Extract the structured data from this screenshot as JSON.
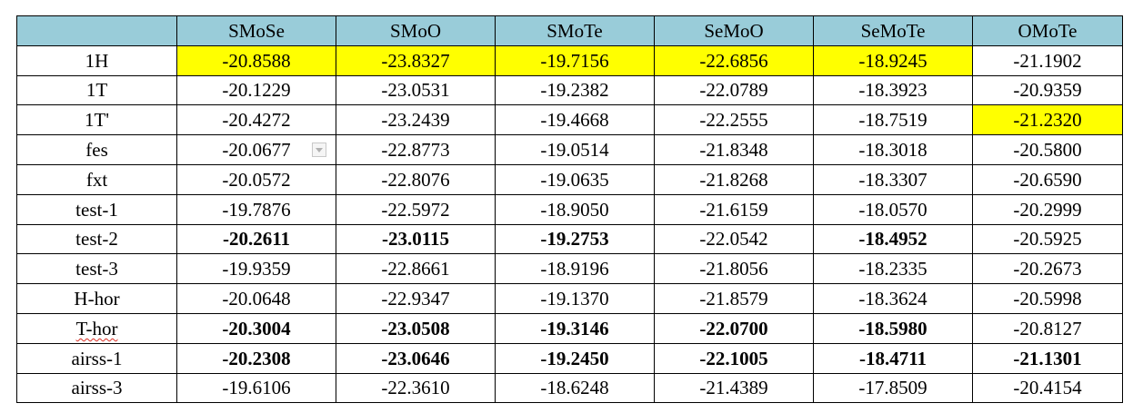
{
  "headers": [
    "",
    "SMoSe",
    "SMoO",
    "SMoTe",
    "SeMoO",
    "SeMoTe",
    "OMoTe"
  ],
  "rows": [
    {
      "label": "1H",
      "values": [
        "-20.8588",
        "-23.8327",
        "-19.7156",
        "-22.6856",
        "-18.9245",
        "-21.1902"
      ],
      "highlight": [
        true,
        true,
        true,
        true,
        true,
        false
      ],
      "bold": [
        false,
        false,
        false,
        false,
        false,
        false
      ]
    },
    {
      "label": "1T",
      "values": [
        "-20.1229",
        "-23.0531",
        "-19.2382",
        "-22.0789",
        "-18.3923",
        "-20.9359"
      ],
      "highlight": [
        false,
        false,
        false,
        false,
        false,
        false
      ],
      "bold": [
        false,
        false,
        false,
        false,
        false,
        false
      ]
    },
    {
      "label": "1T'",
      "values": [
        "-20.4272",
        "-23.2439",
        "-19.4668",
        "-22.2555",
        "-18.7519",
        "-21.2320"
      ],
      "highlight": [
        false,
        false,
        false,
        false,
        false,
        true
      ],
      "bold": [
        false,
        false,
        false,
        false,
        false,
        false
      ]
    },
    {
      "label": "fes",
      "values": [
        "-20.0677",
        "-22.8773",
        "-19.0514",
        "-21.8348",
        "-18.3018",
        "-20.5800"
      ],
      "highlight": [
        false,
        false,
        false,
        false,
        false,
        false
      ],
      "bold": [
        false,
        false,
        false,
        false,
        false,
        false
      ]
    },
    {
      "label": "fxt",
      "values": [
        "-20.0572",
        "-22.8076",
        "-19.0635",
        "-21.8268",
        "-18.3307",
        "-20.6590"
      ],
      "highlight": [
        false,
        false,
        false,
        false,
        false,
        false
      ],
      "bold": [
        false,
        false,
        false,
        false,
        false,
        false
      ]
    },
    {
      "label": "test-1",
      "values": [
        "-19.7876",
        "-22.5972",
        "-18.9050",
        "-21.6159",
        "-18.0570",
        "-20.2999"
      ],
      "highlight": [
        false,
        false,
        false,
        false,
        false,
        false
      ],
      "bold": [
        false,
        false,
        false,
        false,
        false,
        false
      ]
    },
    {
      "label": "test-2",
      "values": [
        "-20.2611",
        "-23.0115",
        "-19.2753",
        "-22.0542",
        "-18.4952",
        "-20.5925"
      ],
      "highlight": [
        false,
        false,
        false,
        false,
        false,
        false
      ],
      "bold": [
        true,
        true,
        true,
        false,
        true,
        false
      ]
    },
    {
      "label": "test-3",
      "values": [
        "-19.9359",
        "-22.8661",
        "-18.9196",
        "-21.8056",
        "-18.2335",
        "-20.2673"
      ],
      "highlight": [
        false,
        false,
        false,
        false,
        false,
        false
      ],
      "bold": [
        false,
        false,
        false,
        false,
        false,
        false
      ]
    },
    {
      "label": "H-hor",
      "values": [
        "-20.0648",
        "-22.9347",
        "-19.1370",
        "-21.8579",
        "-18.3624",
        "-20.5998"
      ],
      "highlight": [
        false,
        false,
        false,
        false,
        false,
        false
      ],
      "bold": [
        false,
        false,
        false,
        false,
        false,
        false
      ]
    },
    {
      "label": "T-hor",
      "values": [
        "-20.3004",
        "-23.0508",
        "-19.3146",
        "-22.0700",
        "-18.5980",
        "-20.8127"
      ],
      "highlight": [
        false,
        false,
        false,
        false,
        false,
        false
      ],
      "bold": [
        true,
        true,
        true,
        true,
        true,
        false
      ]
    },
    {
      "label": "airss-1",
      "values": [
        "-20.2308",
        "-23.0646",
        "-19.2450",
        "-22.1005",
        "-18.4711",
        "-21.1301"
      ],
      "highlight": [
        false,
        false,
        false,
        false,
        false,
        false
      ],
      "bold": [
        true,
        true,
        true,
        true,
        true,
        true
      ]
    },
    {
      "label": "airss-3",
      "values": [
        "-19.6106",
        "-22.3610",
        "-18.6248",
        "-21.4389",
        "-17.8509",
        "-20.4154"
      ],
      "highlight": [
        false,
        false,
        false,
        false,
        false,
        false
      ],
      "bold": [
        false,
        false,
        false,
        false,
        false,
        false
      ]
    }
  ],
  "colors": {
    "header_bg": "#99ccd9",
    "highlight": "#ffff00"
  },
  "icons": {
    "dropdown": "chevron-down-icon"
  }
}
